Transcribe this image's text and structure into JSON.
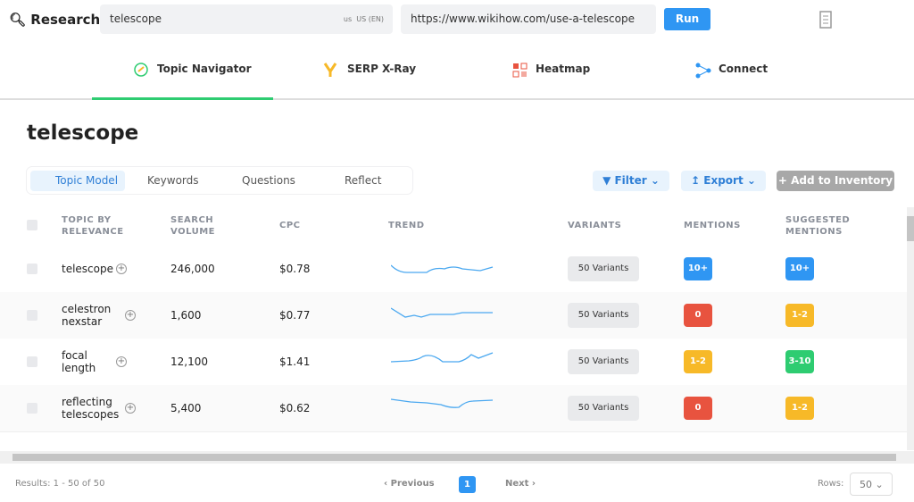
{
  "header": {
    "brand": "Research",
    "query": "telescope",
    "locale_code": "us",
    "locale": "US (EN)",
    "url": "https://www.wikihow.com/use-a-telescope",
    "run": "Run"
  },
  "tabs": [
    "Topic Navigator",
    "SERP X-Ray",
    "Heatmap",
    "Connect"
  ],
  "page_title": "telescope",
  "subtabs": [
    "Topic Model",
    "Keywords",
    "Questions",
    "Reflect"
  ],
  "actions": {
    "filter": "Filter",
    "export": "Export",
    "add": "Add to Inventory"
  },
  "table": {
    "columns": [
      "TOPIC BY RELEVANCE",
      "SEARCH VOLUME",
      "CPC",
      "TREND",
      "VARIANTS",
      "MENTIONS",
      "SUGGESTED MENTIONS"
    ],
    "rows": [
      {
        "topic": "telescope",
        "volume": "246,000",
        "cpc": "$0.78",
        "variants": "50 Variants",
        "mentions": {
          "text": "10+",
          "color": "#2f96f3"
        },
        "suggested": {
          "text": "10+",
          "color": "#2f96f3"
        }
      },
      {
        "topic": "celestron nexstar",
        "volume": "1,600",
        "cpc": "$0.77",
        "variants": "50 Variants",
        "mentions": {
          "text": "0",
          "color": "#e8533f"
        },
        "suggested": {
          "text": "1-2",
          "color": "#f7b928"
        }
      },
      {
        "topic": "focal length",
        "volume": "12,100",
        "cpc": "$1.41",
        "variants": "50 Variants",
        "mentions": {
          "text": "1-2",
          "color": "#f7b928"
        },
        "suggested": {
          "text": "3-10",
          "color": "#2ecc71"
        }
      },
      {
        "topic": "reflecting telescopes",
        "volume": "5,400",
        "cpc": "$0.62",
        "variants": "50 Variants",
        "mentions": {
          "text": "0",
          "color": "#e8533f"
        },
        "suggested": {
          "text": "1-2",
          "color": "#f7b928"
        }
      }
    ]
  },
  "footer": {
    "results": "Results: 1 - 50 of 50",
    "previous": "Previous",
    "page": "1",
    "next": "Next",
    "rows_label": "Rows:",
    "rows_value": "50"
  }
}
